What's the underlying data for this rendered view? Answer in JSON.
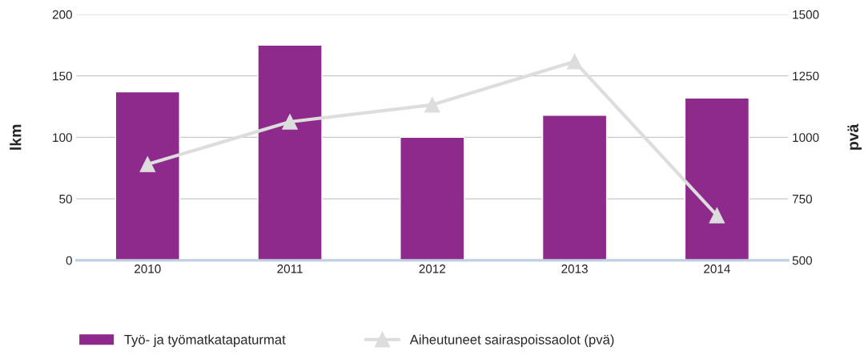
{
  "chart_data": {
    "type": "bar",
    "categories": [
      "2010",
      "2011",
      "2012",
      "2013",
      "2014"
    ],
    "ylabel": "lkm",
    "y2label": "pvä",
    "series": [
      {
        "name": "Työ- ja työmatkatapaturmat",
        "color": "#8e2a8b",
        "values": [
          137,
          175,
          100,
          118,
          132
        ]
      },
      {
        "name": "Aiheutuneet sairaspoissaolot (pvä)",
        "type": "line",
        "axis": "y2",
        "color": "#dddddd",
        "marker": "triangle",
        "values": [
          890,
          1063,
          1132,
          1308,
          682
        ]
      }
    ],
    "ylim": [
      0,
      200
    ],
    "yticks": [
      0,
      50,
      100,
      150,
      200
    ],
    "y2lim": [
      500,
      1500
    ],
    "y2ticks": [
      500,
      750,
      1000,
      1250,
      1500
    ],
    "grid": "y",
    "legend": "bottom"
  }
}
